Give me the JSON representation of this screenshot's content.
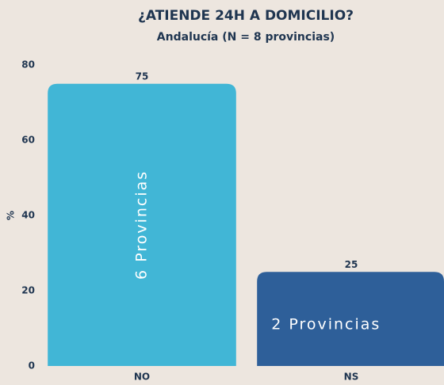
{
  "chart_data": {
    "type": "bar",
    "title": "¿ATIENDE 24H A DOMICILIO?",
    "subtitle": "Andalucía (N = 8 provincias)",
    "y_label": "%",
    "categories": [
      "NO",
      "NS"
    ],
    "values": [
      75,
      25
    ],
    "colors": [
      "#41b6d6",
      "#2e5f99"
    ],
    "annotations": [
      "6 Provincias",
      "2 Provincias"
    ],
    "ylim": [
      0,
      80
    ],
    "yticks": [
      0,
      20,
      40,
      60,
      80
    ],
    "grid": false
  }
}
